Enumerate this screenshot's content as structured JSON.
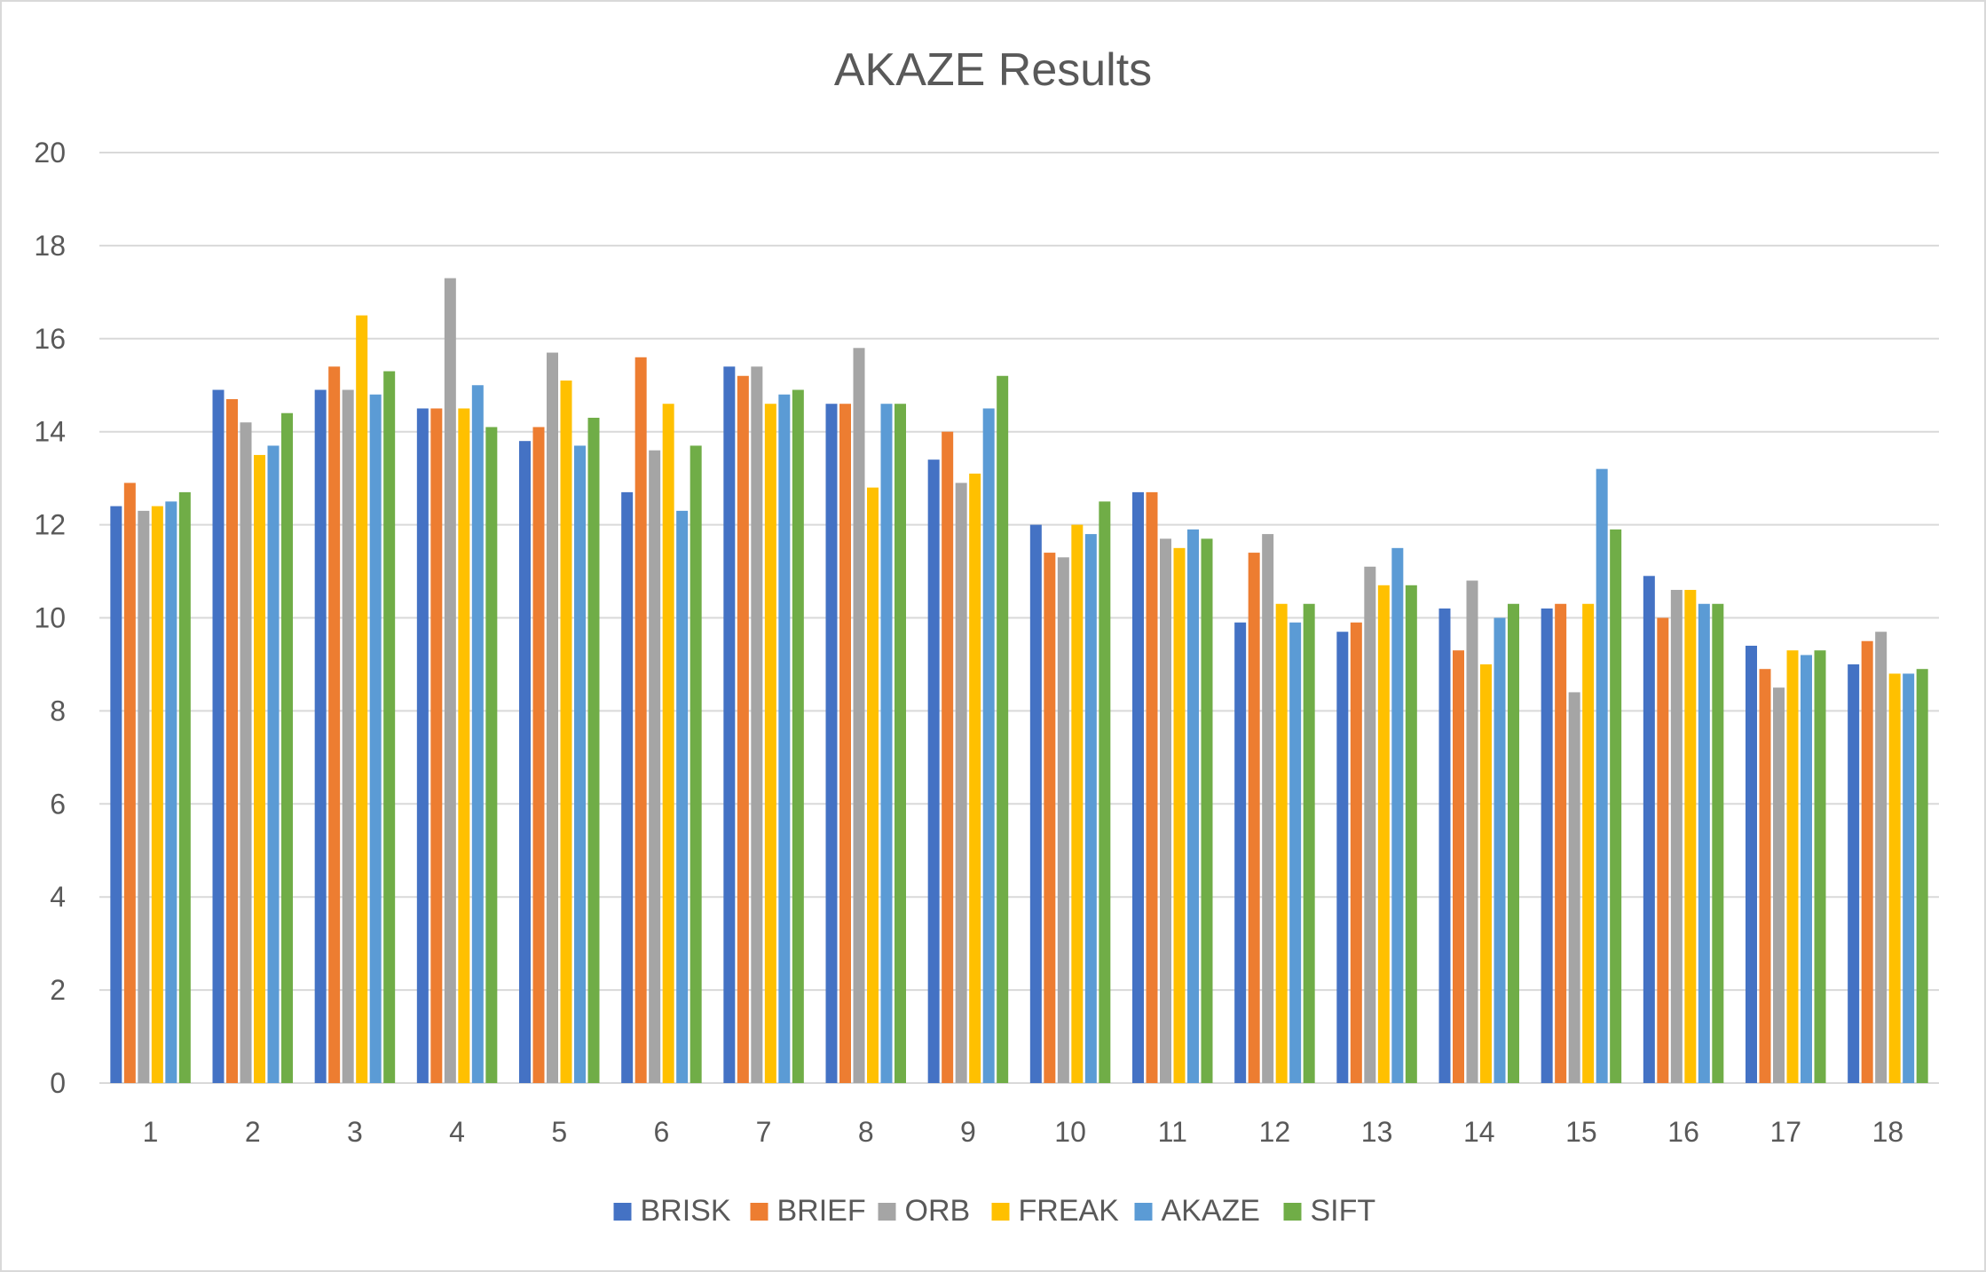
{
  "chart_data": {
    "type": "bar",
    "title": "AKAZE Results",
    "xlabel": "",
    "ylabel": "",
    "ylim": [
      0,
      20
    ],
    "yticks": [
      "0",
      "2",
      "4",
      "6",
      "8",
      "10",
      "12",
      "14",
      "16",
      "18",
      "20"
    ],
    "grid": true,
    "legend_position": "bottom",
    "categories": [
      "1",
      "2",
      "3",
      "4",
      "5",
      "6",
      "7",
      "8",
      "9",
      "10",
      "11",
      "12",
      "13",
      "14",
      "15",
      "16",
      "17",
      "18"
    ],
    "series": [
      {
        "name": "BRISK",
        "color": "#4472c4",
        "values": [
          12.4,
          14.9,
          14.9,
          14.5,
          13.8,
          12.7,
          15.4,
          14.6,
          13.4,
          12.0,
          12.7,
          9.9,
          9.7,
          10.2,
          10.2,
          10.9,
          9.4,
          9.0
        ]
      },
      {
        "name": "BRIEF",
        "color": "#ed7d31",
        "values": [
          12.9,
          14.7,
          15.4,
          14.5,
          14.1,
          15.6,
          15.2,
          14.6,
          14.0,
          11.4,
          12.7,
          11.4,
          9.9,
          9.3,
          10.3,
          10.0,
          8.9,
          9.5
        ]
      },
      {
        "name": "ORB",
        "color": "#a5a5a5",
        "values": [
          12.3,
          14.2,
          14.9,
          17.3,
          15.7,
          13.6,
          15.4,
          15.8,
          12.9,
          11.3,
          11.7,
          11.8,
          11.1,
          10.8,
          8.4,
          10.6,
          8.5,
          9.7
        ]
      },
      {
        "name": "FREAK",
        "color": "#ffc000",
        "values": [
          12.4,
          13.5,
          16.5,
          14.5,
          15.1,
          14.6,
          14.6,
          12.8,
          13.1,
          12.0,
          11.5,
          10.3,
          10.7,
          9.0,
          10.3,
          10.6,
          9.3,
          8.8
        ]
      },
      {
        "name": "AKAZE",
        "color": "#5b9bd5",
        "values": [
          12.5,
          13.7,
          14.8,
          15.0,
          13.7,
          12.3,
          14.8,
          14.6,
          14.5,
          11.8,
          11.9,
          9.9,
          11.5,
          10.0,
          13.2,
          10.3,
          9.2,
          8.8
        ]
      },
      {
        "name": "SIFT",
        "color": "#70ad47",
        "values": [
          12.7,
          14.4,
          15.3,
          14.1,
          14.3,
          13.7,
          14.9,
          14.6,
          15.2,
          12.5,
          11.7,
          10.3,
          10.7,
          10.3,
          11.9,
          10.3,
          9.3,
          8.9
        ]
      }
    ]
  }
}
